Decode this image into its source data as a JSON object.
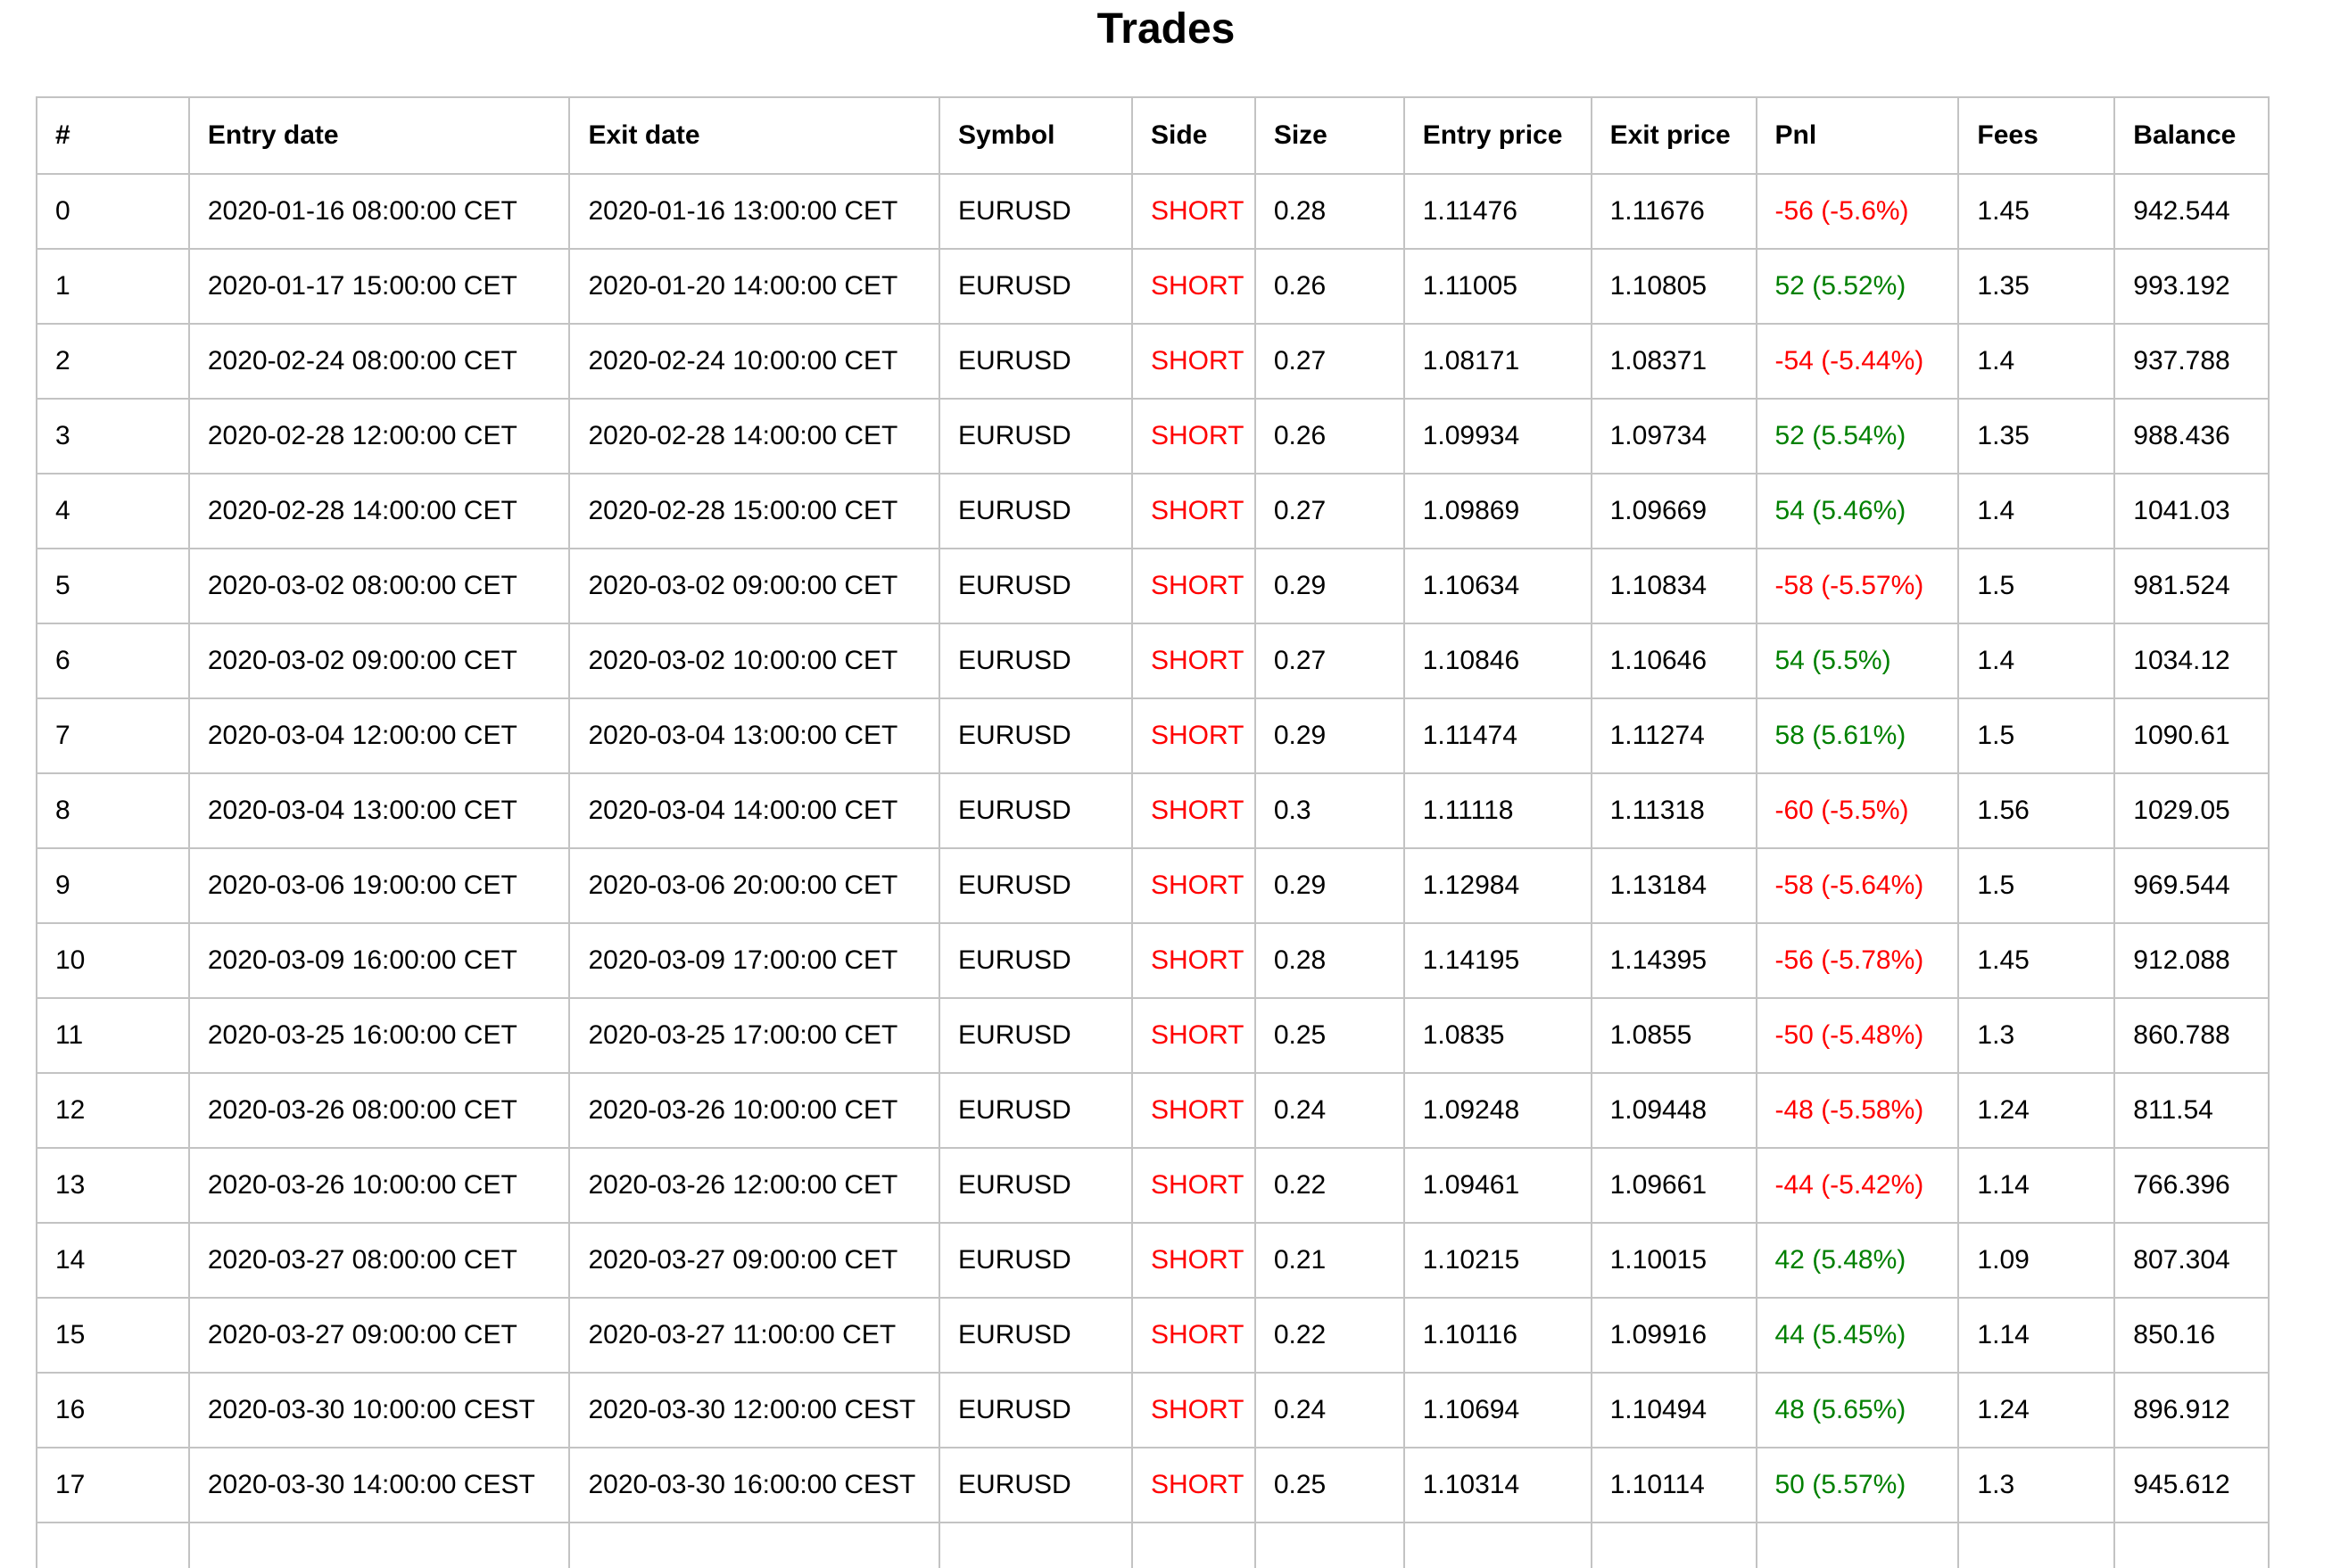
{
  "title": "Trades",
  "colors": {
    "side_short": "#ff0000",
    "pnl_negative": "#ff0000",
    "pnl_positive": "#008000",
    "border": "#c3c3c3",
    "text": "#000000",
    "background": "#ffffff"
  },
  "table": {
    "columns": [
      "#",
      "Entry date",
      "Exit date",
      "Symbol",
      "Side",
      "Size",
      "Entry price",
      "Exit price",
      "Pnl",
      "Fees",
      "Balance"
    ],
    "rows": [
      {
        "index": "0",
        "entry_date": "2020-01-16 08:00:00 CET",
        "exit_date": "2020-01-16 13:00:00 CET",
        "symbol": "EURUSD",
        "side": "SHORT",
        "size": "0.28",
        "entry_price": "1.11476",
        "exit_price": "1.11676",
        "pnl": "-56 (-5.6%)",
        "fees": "1.45",
        "balance": "942.544"
      },
      {
        "index": "1",
        "entry_date": "2020-01-17 15:00:00 CET",
        "exit_date": "2020-01-20 14:00:00 CET",
        "symbol": "EURUSD",
        "side": "SHORT",
        "size": "0.26",
        "entry_price": "1.11005",
        "exit_price": "1.10805",
        "pnl": "52 (5.52%)",
        "fees": "1.35",
        "balance": "993.192"
      },
      {
        "index": "2",
        "entry_date": "2020-02-24 08:00:00 CET",
        "exit_date": "2020-02-24 10:00:00 CET",
        "symbol": "EURUSD",
        "side": "SHORT",
        "size": "0.27",
        "entry_price": "1.08171",
        "exit_price": "1.08371",
        "pnl": "-54 (-5.44%)",
        "fees": "1.4",
        "balance": "937.788"
      },
      {
        "index": "3",
        "entry_date": "2020-02-28 12:00:00 CET",
        "exit_date": "2020-02-28 14:00:00 CET",
        "symbol": "EURUSD",
        "side": "SHORT",
        "size": "0.26",
        "entry_price": "1.09934",
        "exit_price": "1.09734",
        "pnl": "52 (5.54%)",
        "fees": "1.35",
        "balance": "988.436"
      },
      {
        "index": "4",
        "entry_date": "2020-02-28 14:00:00 CET",
        "exit_date": "2020-02-28 15:00:00 CET",
        "symbol": "EURUSD",
        "side": "SHORT",
        "size": "0.27",
        "entry_price": "1.09869",
        "exit_price": "1.09669",
        "pnl": "54 (5.46%)",
        "fees": "1.4",
        "balance": "1041.03"
      },
      {
        "index": "5",
        "entry_date": "2020-03-02 08:00:00 CET",
        "exit_date": "2020-03-02 09:00:00 CET",
        "symbol": "EURUSD",
        "side": "SHORT",
        "size": "0.29",
        "entry_price": "1.10634",
        "exit_price": "1.10834",
        "pnl": "-58 (-5.57%)",
        "fees": "1.5",
        "balance": "981.524"
      },
      {
        "index": "6",
        "entry_date": "2020-03-02 09:00:00 CET",
        "exit_date": "2020-03-02 10:00:00 CET",
        "symbol": "EURUSD",
        "side": "SHORT",
        "size": "0.27",
        "entry_price": "1.10846",
        "exit_price": "1.10646",
        "pnl": "54 (5.5%)",
        "fees": "1.4",
        "balance": "1034.12"
      },
      {
        "index": "7",
        "entry_date": "2020-03-04 12:00:00 CET",
        "exit_date": "2020-03-04 13:00:00 CET",
        "symbol": "EURUSD",
        "side": "SHORT",
        "size": "0.29",
        "entry_price": "1.11474",
        "exit_price": "1.11274",
        "pnl": "58 (5.61%)",
        "fees": "1.5",
        "balance": "1090.61"
      },
      {
        "index": "8",
        "entry_date": "2020-03-04 13:00:00 CET",
        "exit_date": "2020-03-04 14:00:00 CET",
        "symbol": "EURUSD",
        "side": "SHORT",
        "size": "0.3",
        "entry_price": "1.11118",
        "exit_price": "1.11318",
        "pnl": "-60 (-5.5%)",
        "fees": "1.56",
        "balance": "1029.05"
      },
      {
        "index": "9",
        "entry_date": "2020-03-06 19:00:00 CET",
        "exit_date": "2020-03-06 20:00:00 CET",
        "symbol": "EURUSD",
        "side": "SHORT",
        "size": "0.29",
        "entry_price": "1.12984",
        "exit_price": "1.13184",
        "pnl": "-58 (-5.64%)",
        "fees": "1.5",
        "balance": "969.544"
      },
      {
        "index": "10",
        "entry_date": "2020-03-09 16:00:00 CET",
        "exit_date": "2020-03-09 17:00:00 CET",
        "symbol": "EURUSD",
        "side": "SHORT",
        "size": "0.28",
        "entry_price": "1.14195",
        "exit_price": "1.14395",
        "pnl": "-56 (-5.78%)",
        "fees": "1.45",
        "balance": "912.088"
      },
      {
        "index": "11",
        "entry_date": "2020-03-25 16:00:00 CET",
        "exit_date": "2020-03-25 17:00:00 CET",
        "symbol": "EURUSD",
        "side": "SHORT",
        "size": "0.25",
        "entry_price": "1.0835",
        "exit_price": "1.0855",
        "pnl": "-50 (-5.48%)",
        "fees": "1.3",
        "balance": "860.788"
      },
      {
        "index": "12",
        "entry_date": "2020-03-26 08:00:00 CET",
        "exit_date": "2020-03-26 10:00:00 CET",
        "symbol": "EURUSD",
        "side": "SHORT",
        "size": "0.24",
        "entry_price": "1.09248",
        "exit_price": "1.09448",
        "pnl": "-48 (-5.58%)",
        "fees": "1.24",
        "balance": "811.54"
      },
      {
        "index": "13",
        "entry_date": "2020-03-26 10:00:00 CET",
        "exit_date": "2020-03-26 12:00:00 CET",
        "symbol": "EURUSD",
        "side": "SHORT",
        "size": "0.22",
        "entry_price": "1.09461",
        "exit_price": "1.09661",
        "pnl": "-44 (-5.42%)",
        "fees": "1.14",
        "balance": "766.396"
      },
      {
        "index": "14",
        "entry_date": "2020-03-27 08:00:00 CET",
        "exit_date": "2020-03-27 09:00:00 CET",
        "symbol": "EURUSD",
        "side": "SHORT",
        "size": "0.21",
        "entry_price": "1.10215",
        "exit_price": "1.10015",
        "pnl": "42 (5.48%)",
        "fees": "1.09",
        "balance": "807.304"
      },
      {
        "index": "15",
        "entry_date": "2020-03-27 09:00:00 CET",
        "exit_date": "2020-03-27 11:00:00 CET",
        "symbol": "EURUSD",
        "side": "SHORT",
        "size": "0.22",
        "entry_price": "1.10116",
        "exit_price": "1.09916",
        "pnl": "44 (5.45%)",
        "fees": "1.14",
        "balance": "850.16"
      },
      {
        "index": "16",
        "entry_date": "2020-03-30 10:00:00 CEST",
        "exit_date": "2020-03-30 12:00:00 CEST",
        "symbol": "EURUSD",
        "side": "SHORT",
        "size": "0.24",
        "entry_price": "1.10694",
        "exit_price": "1.10494",
        "pnl": "48 (5.65%)",
        "fees": "1.24",
        "balance": "896.912"
      },
      {
        "index": "17",
        "entry_date": "2020-03-30 14:00:00 CEST",
        "exit_date": "2020-03-30 16:00:00 CEST",
        "symbol": "EURUSD",
        "side": "SHORT",
        "size": "0.25",
        "entry_price": "1.10314",
        "exit_price": "1.10114",
        "pnl": "50 (5.57%)",
        "fees": "1.3",
        "balance": "945.612"
      }
    ]
  }
}
